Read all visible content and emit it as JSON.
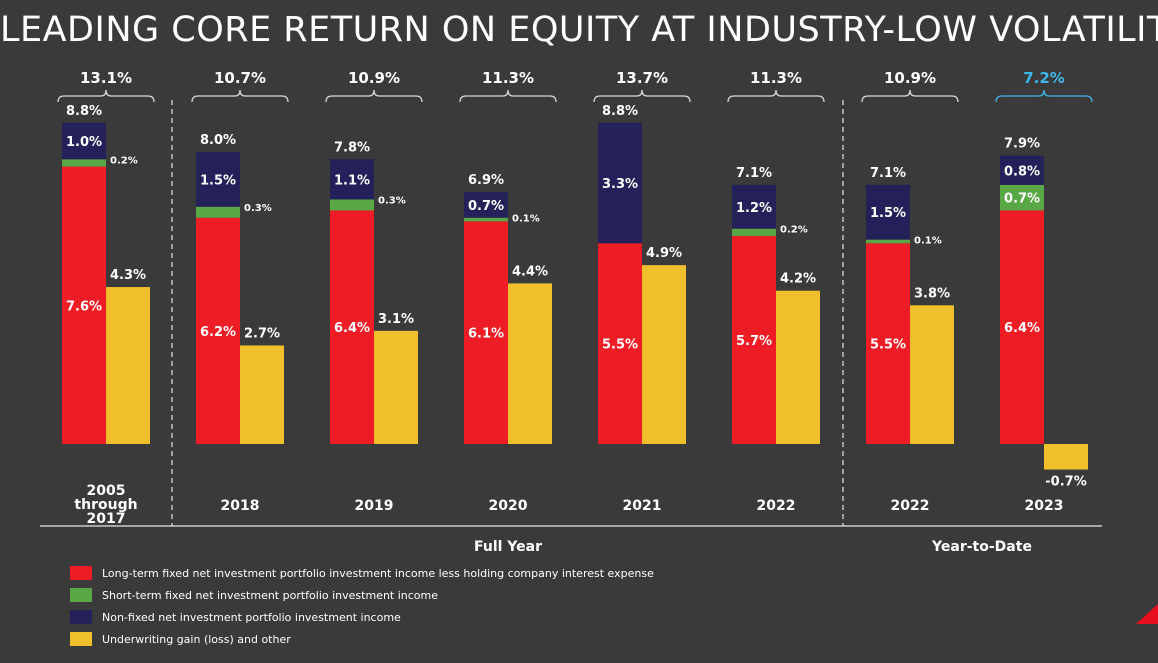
{
  "title": "LEADING CORE RETURN ON EQUITY AT INDUSTRY-LOW VOLATILITY",
  "colors": {
    "long_term": "#ee1c25",
    "short_term": "#5aa845",
    "non_fixed": "#24215a",
    "underwriting": "#f0c02c",
    "highlight_total": "#3fb6ea",
    "background": "#3a3a3a"
  },
  "chart_data": {
    "type": "bar",
    "title": "LEADING CORE RETURN ON EQUITY AT INDUSTRY-LOW VOLATILITY",
    "categories": [
      "2005 through 2017",
      "2018",
      "2019",
      "2020",
      "2021",
      "2022",
      "2022",
      "2023"
    ],
    "category_lines": [
      [
        "2005",
        "through",
        "2017"
      ],
      [
        "2018"
      ],
      [
        "2019"
      ],
      [
        "2020"
      ],
      [
        "2021"
      ],
      [
        "2022"
      ],
      [
        "2022"
      ],
      [
        "2023"
      ]
    ],
    "groups": [
      {
        "label": "Full Year",
        "categories": [
          0,
          1,
          2,
          3,
          4,
          5
        ]
      },
      {
        "label": "Year-to-Date",
        "categories": [
          6,
          7
        ]
      }
    ],
    "totals": [
      "13.1%",
      "10.7%",
      "10.9%",
      "11.3%",
      "13.7%",
      "11.3%",
      "10.9%",
      "7.2%"
    ],
    "highlight_total_index": 7,
    "series": [
      {
        "name": "Long-term fixed net investment portfolio investment income less holding company interest expense",
        "color_key": "long_term",
        "stack": "investment",
        "values": [
          7.6,
          6.2,
          6.4,
          6.1,
          5.5,
          5.7,
          5.5,
          6.4
        ],
        "labels": [
          "7.6%",
          "6.2%",
          "6.4%",
          "6.1%",
          "5.5%",
          "5.7%",
          "5.5%",
          "6.4%"
        ]
      },
      {
        "name": "Short-term fixed net investment portfolio investment income",
        "color_key": "short_term",
        "stack": "investment",
        "values": [
          0.2,
          0.3,
          0.3,
          0.1,
          0.0,
          0.2,
          0.1,
          0.7
        ],
        "labels": [
          "0.2%",
          "0.3%",
          "0.3%",
          "0.1%",
          "",
          "0.2%",
          "0.1%",
          "0.7%"
        ]
      },
      {
        "name": "Non-fixed net investment portfolio investment income",
        "color_key": "non_fixed",
        "stack": "investment",
        "values": [
          1.0,
          1.5,
          1.1,
          0.7,
          3.3,
          1.2,
          1.5,
          0.8
        ],
        "labels": [
          "1.0%",
          "1.5%",
          "1.1%",
          "0.7%",
          "3.3%",
          "1.2%",
          "1.5%",
          "0.8%"
        ]
      },
      {
        "name": "Underwriting gain (loss) and other",
        "color_key": "underwriting",
        "stack": "underwriting",
        "values": [
          4.3,
          2.7,
          3.1,
          4.4,
          4.9,
          4.2,
          3.8,
          -0.7
        ],
        "labels": [
          "4.3%",
          "2.7%",
          "3.1%",
          "4.4%",
          "4.9%",
          "4.2%",
          "3.8%",
          "-0.7%"
        ]
      }
    ],
    "investment_totals": [
      "8.8%",
      "8.0%",
      "7.8%",
      "6.9%",
      "8.8%",
      "7.1%",
      "7.1%",
      "7.9%"
    ],
    "ylim": [
      -0.8,
      9.0
    ],
    "legend": "bottom-left"
  }
}
